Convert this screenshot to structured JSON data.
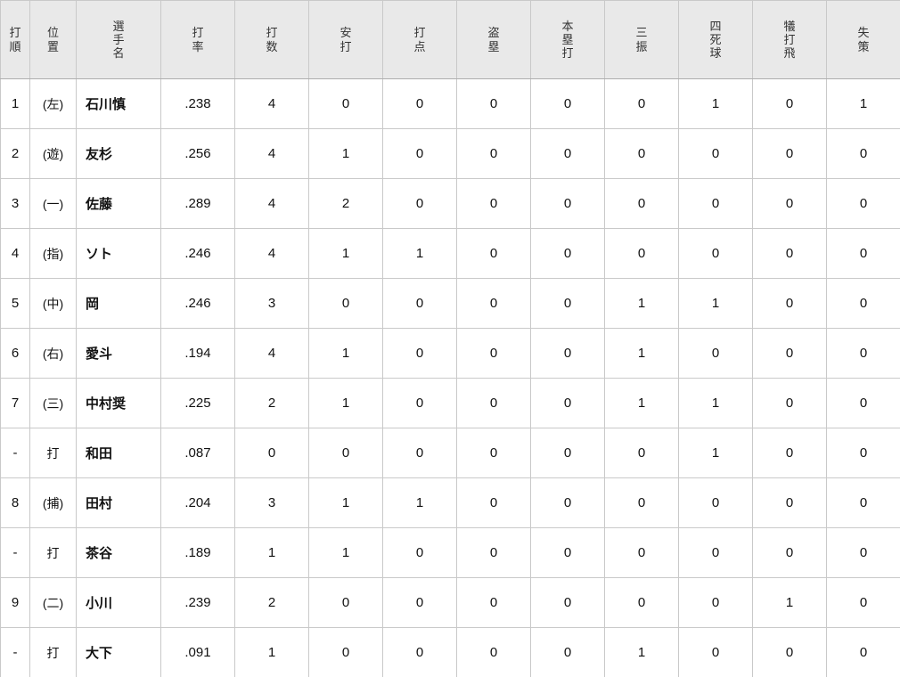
{
  "table": {
    "columns": [
      {
        "key": "order",
        "label": "打順"
      },
      {
        "key": "position",
        "label": "位置"
      },
      {
        "key": "name",
        "label": "選手名"
      },
      {
        "key": "avg",
        "label": "打率"
      },
      {
        "key": "ab",
        "label": "打数"
      },
      {
        "key": "hits",
        "label": "安打"
      },
      {
        "key": "rbi",
        "label": "打点"
      },
      {
        "key": "sb",
        "label": "盗塁"
      },
      {
        "key": "hr",
        "label": "本塁打"
      },
      {
        "key": "so",
        "label": "三振"
      },
      {
        "key": "bb",
        "label": "四死球"
      },
      {
        "key": "sac",
        "label": "犠打飛"
      },
      {
        "key": "err",
        "label": "失策"
      }
    ],
    "rows": [
      [
        "1",
        "(左)",
        "石川慎",
        ".238",
        "4",
        "0",
        "0",
        "0",
        "0",
        "0",
        "1",
        "0",
        "1"
      ],
      [
        "2",
        "(遊)",
        "友杉",
        ".256",
        "4",
        "1",
        "0",
        "0",
        "0",
        "0",
        "0",
        "0",
        "0"
      ],
      [
        "3",
        "(一)",
        "佐藤",
        ".289",
        "4",
        "2",
        "0",
        "0",
        "0",
        "0",
        "0",
        "0",
        "0"
      ],
      [
        "4",
        "(指)",
        "ソト",
        ".246",
        "4",
        "1",
        "1",
        "0",
        "0",
        "0",
        "0",
        "0",
        "0"
      ],
      [
        "5",
        "(中)",
        "岡",
        ".246",
        "3",
        "0",
        "0",
        "0",
        "0",
        "1",
        "1",
        "0",
        "0"
      ],
      [
        "6",
        "(右)",
        "愛斗",
        ".194",
        "4",
        "1",
        "0",
        "0",
        "0",
        "1",
        "0",
        "0",
        "0"
      ],
      [
        "7",
        "(三)",
        "中村奨",
        ".225",
        "2",
        "1",
        "0",
        "0",
        "0",
        "1",
        "1",
        "0",
        "0"
      ],
      [
        "-",
        "打",
        "和田",
        ".087",
        "0",
        "0",
        "0",
        "0",
        "0",
        "0",
        "1",
        "0",
        "0"
      ],
      [
        "8",
        "(捕)",
        "田村",
        ".204",
        "3",
        "1",
        "1",
        "0",
        "0",
        "0",
        "0",
        "0",
        "0"
      ],
      [
        "-",
        "打",
        "茶谷",
        ".189",
        "1",
        "1",
        "0",
        "0",
        "0",
        "0",
        "0",
        "0",
        "0"
      ],
      [
        "9",
        "(二)",
        "小川",
        ".239",
        "2",
        "0",
        "0",
        "0",
        "0",
        "0",
        "0",
        "1",
        "0"
      ],
      [
        "-",
        "打",
        "大下",
        ".091",
        "1",
        "0",
        "0",
        "0",
        "0",
        "1",
        "0",
        "0",
        "0"
      ]
    ]
  },
  "colors": {
    "header_bg": "#e9e9e9",
    "grid_border": "#c9c9c9",
    "header_bottom_border": "#adadad",
    "body_text": "#111111",
    "header_text": "#333333"
  }
}
